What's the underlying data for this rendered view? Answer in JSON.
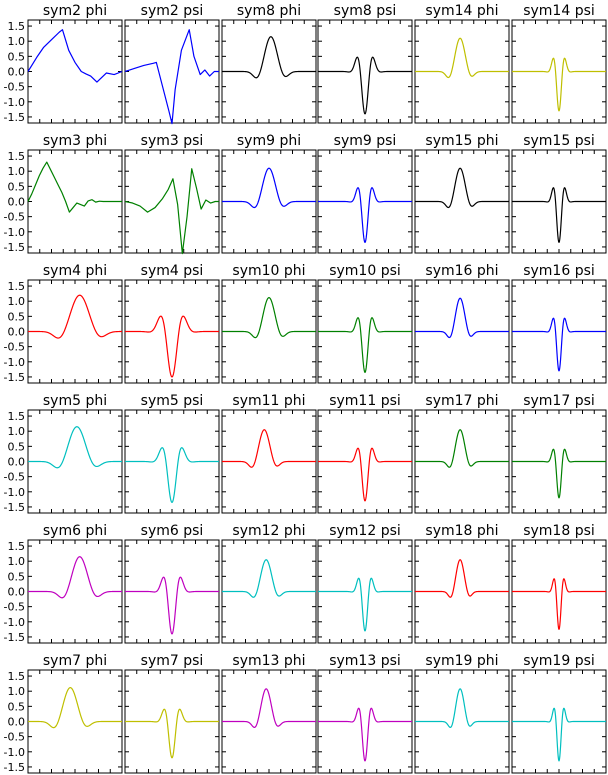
{
  "figure": {
    "y_ticks": [
      "1.5",
      "1.0",
      "0.5",
      "0.0",
      "-0.5",
      "-1.0",
      "-1.5"
    ],
    "colors": {
      "blue": "#0000ff",
      "green": "#008000",
      "red": "#ff0000",
      "cyan": "#00bfbf",
      "magenta": "#bf00bf",
      "olive": "#bfbf00",
      "black": "#000000"
    }
  },
  "chart_data": [
    {
      "type": "line",
      "title": "sym2 phi",
      "color": "#0000ff",
      "ylim": [
        -1.7,
        1.7
      ],
      "y_ticks": [
        -1.5,
        -1,
        -0.5,
        0,
        0.5,
        1,
        1.5
      ],
      "x": [
        0,
        0.15,
        0.3,
        0.5,
        0.75,
        1,
        1.1,
        1.3,
        1.5,
        1.7,
        1.85,
        2.0,
        2.2,
        2.5,
        2.75,
        3
      ],
      "y": [
        0,
        0.25,
        0.5,
        0.8,
        1.05,
        1.3,
        1.38,
        0.7,
        0.3,
        0.0,
        -0.08,
        -0.15,
        -0.35,
        -0.05,
        -0.1,
        0
      ]
    },
    {
      "type": "line",
      "title": "sym2 psi",
      "color": "#0000ff",
      "ylim": [
        -1.7,
        1.7
      ],
      "y_ticks": [
        -1.5,
        -1,
        -0.5,
        0,
        0.5,
        1,
        1.5
      ],
      "x": [
        0,
        0.3,
        0.6,
        0.9,
        1.0,
        1.2,
        1.4,
        1.5,
        1.6,
        1.8,
        2.05,
        2.2,
        2.4,
        2.55,
        2.7,
        2.85,
        3
      ],
      "y": [
        0,
        0.1,
        0.2,
        0.27,
        0.3,
        -0.5,
        -1.3,
        -1.72,
        -0.6,
        0.7,
        1.38,
        0.5,
        -0.1,
        0.05,
        -0.15,
        0.0,
        0
      ]
    },
    {
      "type": "line",
      "title": "sym8 phi",
      "color": "#000000",
      "ylim": [
        -1.7,
        1.7
      ],
      "y_ticks": [
        -1.5,
        -1,
        -0.5,
        0,
        0.5,
        1,
        1.5
      ],
      "kind": "phi",
      "center": 0.52,
      "width": 0.15,
      "amplitude": 1.15
    },
    {
      "type": "line",
      "title": "sym8 psi",
      "color": "#000000",
      "ylim": [
        -1.7,
        1.7
      ],
      "y_ticks": [
        -1.5,
        -1,
        -0.5,
        0,
        0.5,
        1,
        1.5
      ],
      "kind": "psi",
      "center": 0.5,
      "width": 0.11,
      "amplitude": 1.4
    },
    {
      "type": "line",
      "title": "sym14 phi",
      "color": "#bfbf00",
      "ylim": [
        -1.7,
        1.7
      ],
      "y_ticks": [
        -1.5,
        -1,
        -0.5,
        0,
        0.5,
        1,
        1.5
      ],
      "kind": "phi",
      "center": 0.48,
      "width": 0.12,
      "amplitude": 1.1
    },
    {
      "type": "line",
      "title": "sym14 psi",
      "color": "#bfbf00",
      "ylim": [
        -1.7,
        1.7
      ],
      "y_ticks": [
        -1.5,
        -1,
        -0.5,
        0,
        0.5,
        1,
        1.5
      ],
      "kind": "psi",
      "center": 0.5,
      "width": 0.08,
      "amplitude": 1.3
    },
    {
      "type": "line",
      "title": "sym3 phi",
      "color": "#008000",
      "ylim": [
        -1.7,
        1.7
      ],
      "y_ticks": [
        -1.5,
        -1,
        -0.5,
        0,
        0.5,
        1,
        1.5
      ],
      "x": [
        0,
        0.2,
        0.4,
        0.6,
        0.8,
        1.0,
        1.2,
        1.4,
        1.6,
        1.8,
        2.0,
        2.2,
        2.4,
        2.6,
        2.8,
        3.0,
        3.2,
        3.4,
        3.6,
        3.8,
        4.0,
        4.2,
        4.4,
        4.6,
        4.8,
        5
      ],
      "y": [
        0,
        0.25,
        0.55,
        0.85,
        1.1,
        1.3,
        1.05,
        0.8,
        0.55,
        0.3,
        0.0,
        -0.35,
        -0.2,
        -0.05,
        -0.1,
        -0.15,
        0.02,
        0.06,
        -0.02,
        0.01,
        0.0,
        0.0,
        0,
        0,
        0,
        0
      ]
    },
    {
      "type": "line",
      "title": "sym3 psi",
      "color": "#008000",
      "ylim": [
        -1.7,
        1.7
      ],
      "y_ticks": [
        -1.5,
        -1,
        -0.5,
        0,
        0.5,
        1,
        1.5
      ],
      "x": [
        0,
        0.4,
        0.8,
        1.2,
        1.6,
        2.0,
        2.3,
        2.55,
        2.8,
        3.05,
        3.3,
        3.55,
        3.8,
        4.05,
        4.3,
        4.55,
        4.8,
        5
      ],
      "y": [
        0,
        -0.05,
        -0.15,
        -0.35,
        -0.2,
        0.1,
        0.4,
        0.75,
        -0.1,
        -1.72,
        -0.5,
        1.08,
        0.45,
        -0.25,
        0.05,
        -0.05,
        0.0,
        0
      ]
    },
    {
      "type": "line",
      "title": "sym9 phi",
      "color": "#0000ff",
      "ylim": [
        -1.7,
        1.7
      ],
      "y_ticks": [
        -1.5,
        -1,
        -0.5,
        0,
        0.5,
        1,
        1.5
      ],
      "kind": "phi",
      "center": 0.5,
      "width": 0.15,
      "amplitude": 1.1
    },
    {
      "type": "line",
      "title": "sym9 psi",
      "color": "#0000ff",
      "ylim": [
        -1.7,
        1.7
      ],
      "y_ticks": [
        -1.5,
        -1,
        -0.5,
        0,
        0.5,
        1,
        1.5
      ],
      "kind": "psi",
      "center": 0.5,
      "width": 0.1,
      "amplitude": 1.35
    },
    {
      "type": "line",
      "title": "sym15 phi",
      "color": "#000000",
      "ylim": [
        -1.7,
        1.7
      ],
      "y_ticks": [
        -1.5,
        -1,
        -0.5,
        0,
        0.5,
        1,
        1.5
      ],
      "kind": "phi",
      "center": 0.48,
      "width": 0.12,
      "amplitude": 1.1
    },
    {
      "type": "line",
      "title": "sym15 psi",
      "color": "#000000",
      "ylim": [
        -1.7,
        1.7
      ],
      "y_ticks": [
        -1.5,
        -1,
        -0.5,
        0,
        0.5,
        1,
        1.5
      ],
      "kind": "psi",
      "center": 0.5,
      "width": 0.08,
      "amplitude": 1.35
    },
    {
      "type": "line",
      "title": "sym4 phi",
      "color": "#ff0000",
      "ylim": [
        -1.7,
        1.7
      ],
      "y_ticks": [
        -1.5,
        -1,
        -0.5,
        0,
        0.5,
        1,
        1.5
      ],
      "kind": "phi",
      "center": 0.55,
      "width": 0.22,
      "amplitude": 1.2
    },
    {
      "type": "line",
      "title": "sym4 psi",
      "color": "#ff0000",
      "ylim": [
        -1.7,
        1.7
      ],
      "y_ticks": [
        -1.5,
        -1,
        -0.5,
        0,
        0.5,
        1,
        1.5
      ],
      "kind": "psi",
      "center": 0.5,
      "width": 0.16,
      "amplitude": 1.5
    },
    {
      "type": "line",
      "title": "sym10 phi",
      "color": "#008000",
      "ylim": [
        -1.7,
        1.7
      ],
      "y_ticks": [
        -1.5,
        -1,
        -0.5,
        0,
        0.5,
        1,
        1.5
      ],
      "kind": "phi",
      "center": 0.5,
      "width": 0.14,
      "amplitude": 1.12
    },
    {
      "type": "line",
      "title": "sym10 psi",
      "color": "#008000",
      "ylim": [
        -1.7,
        1.7
      ],
      "y_ticks": [
        -1.5,
        -1,
        -0.5,
        0,
        0.5,
        1,
        1.5
      ],
      "kind": "psi",
      "center": 0.5,
      "width": 0.1,
      "amplitude": 1.35
    },
    {
      "type": "line",
      "title": "sym16 phi",
      "color": "#0000ff",
      "ylim": [
        -1.7,
        1.7
      ],
      "y_ticks": [
        -1.5,
        -1,
        -0.5,
        0,
        0.5,
        1,
        1.5
      ],
      "kind": "phi",
      "center": 0.48,
      "width": 0.11,
      "amplitude": 1.1
    },
    {
      "type": "line",
      "title": "sym16 psi",
      "color": "#0000ff",
      "ylim": [
        -1.7,
        1.7
      ],
      "y_ticks": [
        -1.5,
        -1,
        -0.5,
        0,
        0.5,
        1,
        1.5
      ],
      "kind": "psi",
      "center": 0.5,
      "width": 0.08,
      "amplitude": 1.3
    },
    {
      "type": "line",
      "title": "sym5 phi",
      "color": "#00bfbf",
      "ylim": [
        -1.7,
        1.7
      ],
      "y_ticks": [
        -1.5,
        -1,
        -0.5,
        0,
        0.5,
        1,
        1.5
      ],
      "kind": "phi",
      "center": 0.52,
      "width": 0.2,
      "amplitude": 1.15
    },
    {
      "type": "line",
      "title": "sym5 psi",
      "color": "#00bfbf",
      "ylim": [
        -1.7,
        1.7
      ],
      "y_ticks": [
        -1.5,
        -1,
        -0.5,
        0,
        0.5,
        1,
        1.5
      ],
      "kind": "psi",
      "center": 0.5,
      "width": 0.14,
      "amplitude": 1.35
    },
    {
      "type": "line",
      "title": "sym11 phi",
      "color": "#ff0000",
      "ylim": [
        -1.7,
        1.7
      ],
      "y_ticks": [
        -1.5,
        -1,
        -0.5,
        0,
        0.5,
        1,
        1.5
      ],
      "kind": "phi",
      "center": 0.45,
      "width": 0.13,
      "amplitude": 1.05
    },
    {
      "type": "line",
      "title": "sym11 psi",
      "color": "#ff0000",
      "ylim": [
        -1.7,
        1.7
      ],
      "y_ticks": [
        -1.5,
        -1,
        -0.5,
        0,
        0.5,
        1,
        1.5
      ],
      "kind": "psi",
      "center": 0.5,
      "width": 0.1,
      "amplitude": 1.3
    },
    {
      "type": "line",
      "title": "sym17 phi",
      "color": "#008000",
      "ylim": [
        -1.7,
        1.7
      ],
      "y_ticks": [
        -1.5,
        -1,
        -0.5,
        0,
        0.5,
        1,
        1.5
      ],
      "kind": "phi",
      "center": 0.48,
      "width": 0.11,
      "amplitude": 1.05
    },
    {
      "type": "line",
      "title": "sym17 psi",
      "color": "#008000",
      "ylim": [
        -1.7,
        1.7
      ],
      "y_ticks": [
        -1.5,
        -1,
        -0.5,
        0,
        0.5,
        1,
        1.5
      ],
      "kind": "psi",
      "center": 0.5,
      "width": 0.08,
      "amplitude": 1.2
    },
    {
      "type": "line",
      "title": "sym6 phi",
      "color": "#bf00bf",
      "ylim": [
        -1.7,
        1.7
      ],
      "y_ticks": [
        -1.5,
        -1,
        -0.5,
        0,
        0.5,
        1,
        1.5
      ],
      "kind": "phi",
      "center": 0.55,
      "width": 0.18,
      "amplitude": 1.15
    },
    {
      "type": "line",
      "title": "sym6 psi",
      "color": "#bf00bf",
      "ylim": [
        -1.7,
        1.7
      ],
      "y_ticks": [
        -1.5,
        -1,
        -0.5,
        0,
        0.5,
        1,
        1.5
      ],
      "kind": "psi",
      "center": 0.5,
      "width": 0.12,
      "amplitude": 1.4
    },
    {
      "type": "line",
      "title": "sym12 phi",
      "color": "#00bfbf",
      "ylim": [
        -1.7,
        1.7
      ],
      "y_ticks": [
        -1.5,
        -1,
        -0.5,
        0,
        0.5,
        1,
        1.5
      ],
      "kind": "phi",
      "center": 0.47,
      "width": 0.13,
      "amplitude": 1.05
    },
    {
      "type": "line",
      "title": "sym12 psi",
      "color": "#00bfbf",
      "ylim": [
        -1.7,
        1.7
      ],
      "y_ticks": [
        -1.5,
        -1,
        -0.5,
        0,
        0.5,
        1,
        1.5
      ],
      "kind": "psi",
      "center": 0.5,
      "width": 0.09,
      "amplitude": 1.3
    },
    {
      "type": "line",
      "title": "sym18 phi",
      "color": "#ff0000",
      "ylim": [
        -1.7,
        1.7
      ],
      "y_ticks": [
        -1.5,
        -1,
        -0.5,
        0,
        0.5,
        1,
        1.5
      ],
      "kind": "phi",
      "center": 0.48,
      "width": 0.1,
      "amplitude": 1.05
    },
    {
      "type": "line",
      "title": "sym18 psi",
      "color": "#ff0000",
      "ylim": [
        -1.7,
        1.7
      ],
      "y_ticks": [
        -1.5,
        -1,
        -0.5,
        0,
        0.5,
        1,
        1.5
      ],
      "kind": "psi",
      "center": 0.5,
      "width": 0.07,
      "amplitude": 1.25
    },
    {
      "type": "line",
      "title": "sym7 phi",
      "color": "#bfbf00",
      "ylim": [
        -1.7,
        1.7
      ],
      "y_ticks": [
        -1.5,
        -1,
        -0.5,
        0,
        0.5,
        1,
        1.5
      ],
      "kind": "phi",
      "center": 0.45,
      "width": 0.17,
      "amplitude": 1.12
    },
    {
      "type": "line",
      "title": "sym7 psi",
      "color": "#bfbf00",
      "ylim": [
        -1.7,
        1.7
      ],
      "y_ticks": [
        -1.5,
        -1,
        -0.5,
        0,
        0.5,
        1,
        1.5
      ],
      "kind": "psi",
      "center": 0.5,
      "width": 0.11,
      "amplitude": 1.2
    },
    {
      "type": "line",
      "title": "sym13 phi",
      "color": "#bf00bf",
      "ylim": [
        -1.7,
        1.7
      ],
      "y_ticks": [
        -1.5,
        -1,
        -0.5,
        0,
        0.5,
        1,
        1.5
      ],
      "kind": "phi",
      "center": 0.47,
      "width": 0.12,
      "amplitude": 1.08
    },
    {
      "type": "line",
      "title": "sym13 psi",
      "color": "#bf00bf",
      "ylim": [
        -1.7,
        1.7
      ],
      "y_ticks": [
        -1.5,
        -1,
        -0.5,
        0,
        0.5,
        1,
        1.5
      ],
      "kind": "psi",
      "center": 0.5,
      "width": 0.09,
      "amplitude": 1.3
    },
    {
      "type": "line",
      "title": "sym19 phi",
      "color": "#00bfbf",
      "ylim": [
        -1.7,
        1.7
      ],
      "y_ticks": [
        -1.5,
        -1,
        -0.5,
        0,
        0.5,
        1,
        1.5
      ],
      "kind": "phi",
      "center": 0.48,
      "width": 0.1,
      "amplitude": 1.08
    },
    {
      "type": "line",
      "title": "sym19 psi",
      "color": "#00bfbf",
      "ylim": [
        -1.7,
        1.7
      ],
      "y_ticks": [
        -1.5,
        -1,
        -0.5,
        0,
        0.5,
        1,
        1.5
      ],
      "kind": "psi",
      "center": 0.5,
      "width": 0.07,
      "amplitude": 1.3
    }
  ]
}
